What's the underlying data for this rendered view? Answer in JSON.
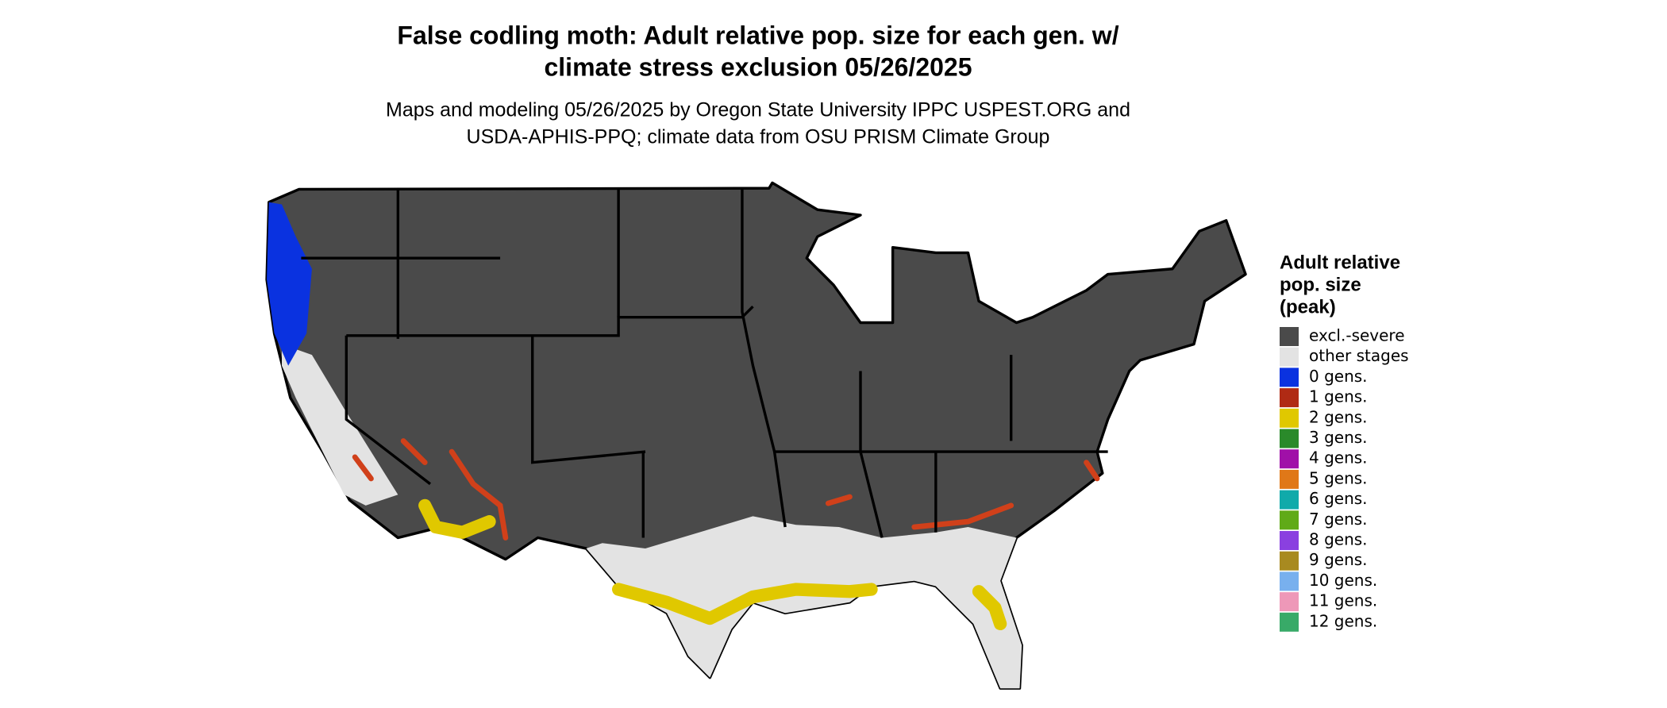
{
  "header": {
    "title": [
      "False codling moth: Adult relative pop. size for each gen. w/",
      "climate stress exclusion 05/26/2025"
    ],
    "subtitle": [
      "Maps and modeling 05/26/2025 by Oregon State University IPPC USPEST.ORG and",
      "USDA-APHIS-PPQ; climate data from OSU PRISM Climate Group"
    ]
  },
  "legend": {
    "title": [
      "Adult relative",
      "pop. size",
      "(peak)"
    ],
    "items": [
      {
        "label": "excl.-severe",
        "color": "#4a4a4a"
      },
      {
        "label": "other stages",
        "color": "#e3e3e3"
      },
      {
        "label": "0 gens.",
        "color": "#0a32e0"
      },
      {
        "label": "1 gens.",
        "color": "#b02a14"
      },
      {
        "label": "2 gens.",
        "color": "#e0c800"
      },
      {
        "label": "3 gens.",
        "color": "#2a8a2a"
      },
      {
        "label": "4 gens.",
        "color": "#a010a8"
      },
      {
        "label": "5 gens.",
        "color": "#e07818"
      },
      {
        "label": "6 gens.",
        "color": "#10aaaa"
      },
      {
        "label": "7 gens.",
        "color": "#60aa18"
      },
      {
        "label": "8 gens.",
        "color": "#8a40e0"
      },
      {
        "label": "9 gens.",
        "color": "#a88a20"
      },
      {
        "label": "10 gens.",
        "color": "#78b0ee"
      },
      {
        "label": "11 gens.",
        "color": "#ee98b8"
      },
      {
        "label": "12 gens.",
        "color": "#38aa68"
      }
    ]
  }
}
